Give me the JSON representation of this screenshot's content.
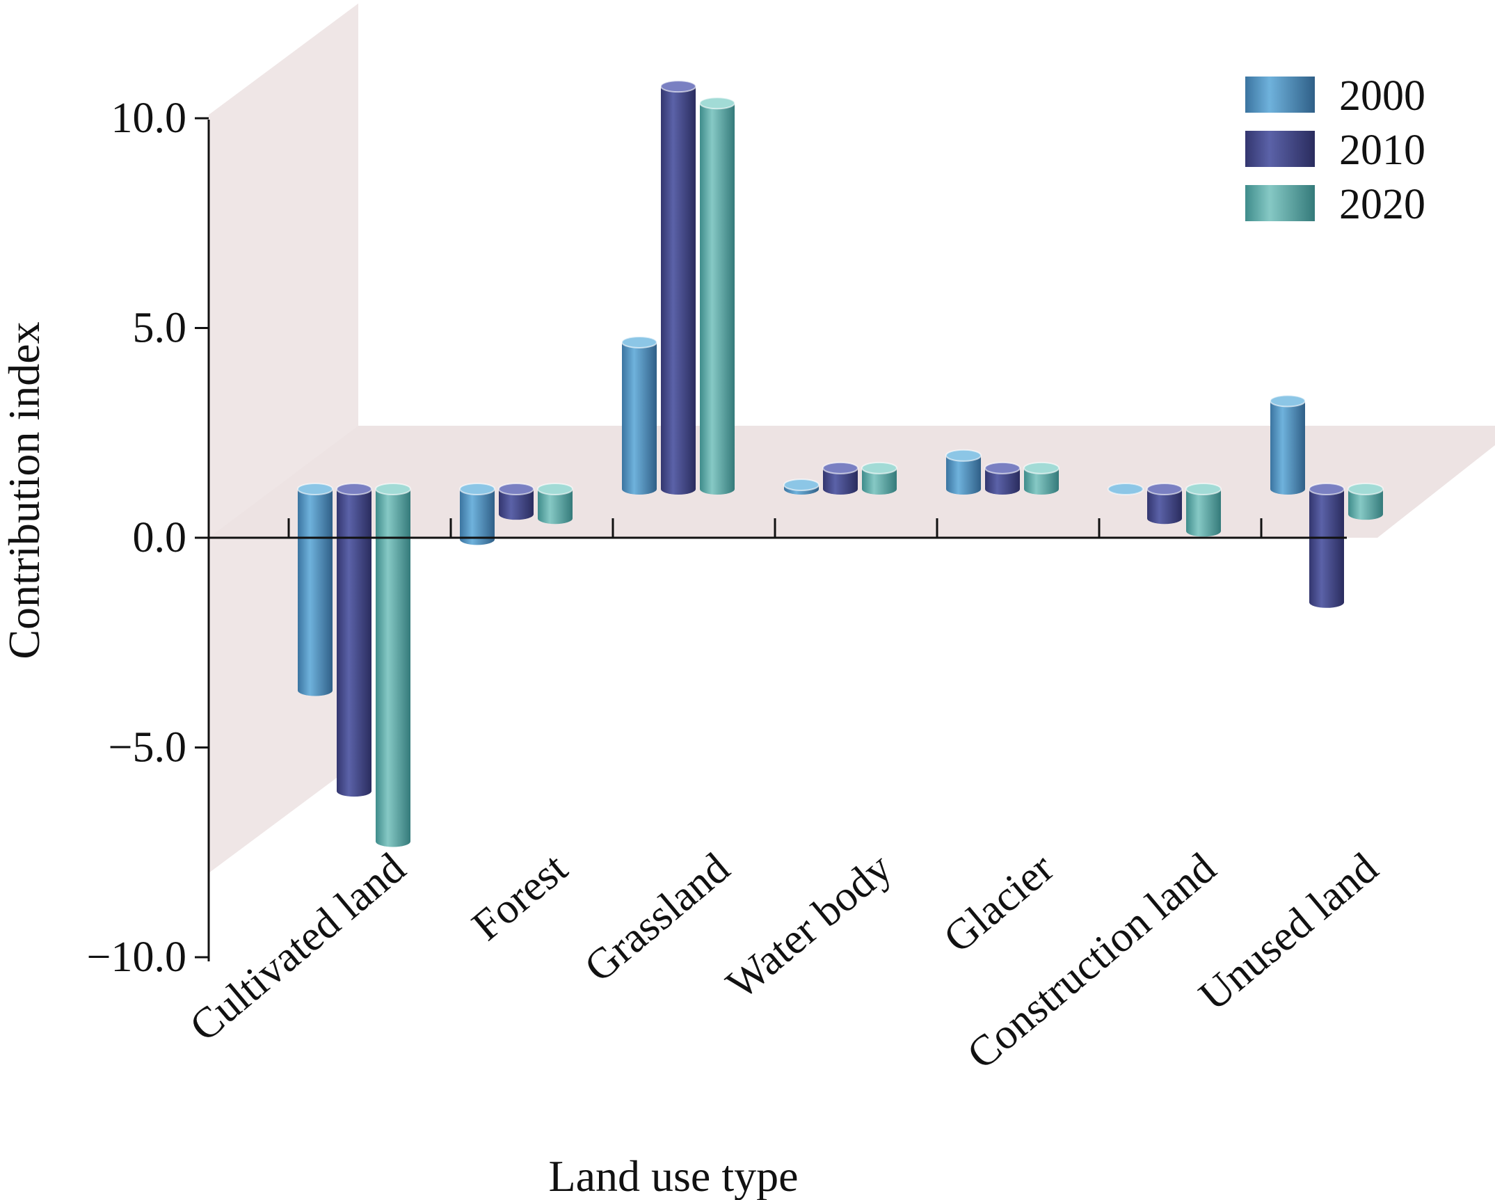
{
  "chart_data": {
    "type": "bar",
    "title": "",
    "xlabel": "Land use type",
    "ylabel": "Contribution index",
    "ylim": [
      -10,
      10
    ],
    "yticks": [
      10,
      5,
      0,
      -5,
      -10
    ],
    "ytick_labels": [
      "10.0",
      "5.0",
      "0.0",
      "−5.0",
      "−10.0"
    ],
    "categories": [
      "Cultivated land",
      "Forest",
      "Grassland",
      "Water body",
      "Glacier",
      "Construction land",
      "Unused land"
    ],
    "series": [
      {
        "name": "2000",
        "color": "#4a86b4",
        "values": [
          -4.8,
          -1.2,
          3.5,
          0.1,
          0.8,
          0.0,
          2.1
        ]
      },
      {
        "name": "2010",
        "color": "#3b3f82",
        "values": [
          -7.2,
          -0.6,
          9.6,
          0.5,
          0.5,
          -0.7,
          -2.7
        ]
      },
      {
        "name": "2020",
        "color": "#4ca3a2",
        "values": [
          -8.4,
          -0.7,
          9.2,
          0.5,
          0.5,
          -1.0,
          -0.6
        ]
      }
    ],
    "legend": {
      "position": "top-right",
      "entries": [
        "2000",
        "2010",
        "2020"
      ]
    },
    "style": "3d-cylinder",
    "grid": false
  }
}
